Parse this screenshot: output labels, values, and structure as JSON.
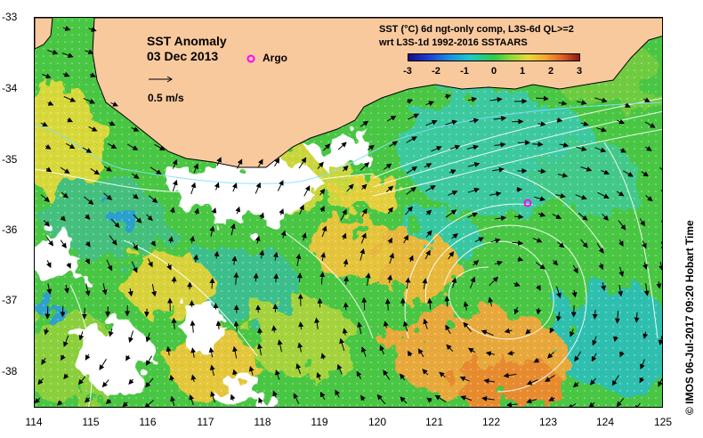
{
  "map": {
    "title": "SST Anomaly",
    "date": "03 Dec 2013",
    "argo_label": "Argo",
    "velocity_scale_label": "0.5 m/s",
    "product_line1": "SST (°C) 6d ngt-only comp, L3S-6d QL>=2",
    "product_line2": "wrt L3S-1d 1992-2016 SSTAARS",
    "credit": "© IMOS 06-Jul-2017 09:20 Hobart Time",
    "x_axis": {
      "ticks": [
        "114",
        "115",
        "116",
        "117",
        "118",
        "119",
        "120",
        "121",
        "122",
        "123",
        "124",
        "125"
      ]
    },
    "y_axis": {
      "ticks": [
        "-33",
        "-34",
        "-35",
        "-36",
        "-37",
        "-38"
      ]
    },
    "colorbar": {
      "ticks": [
        "-3",
        "-2",
        "-1",
        "0",
        "1",
        "2",
        "3"
      ],
      "range": [
        -3,
        3
      ]
    },
    "land_color": "#f9c99e",
    "argo_float": {
      "lon": 122.55,
      "lat": -35.6
    }
  }
}
